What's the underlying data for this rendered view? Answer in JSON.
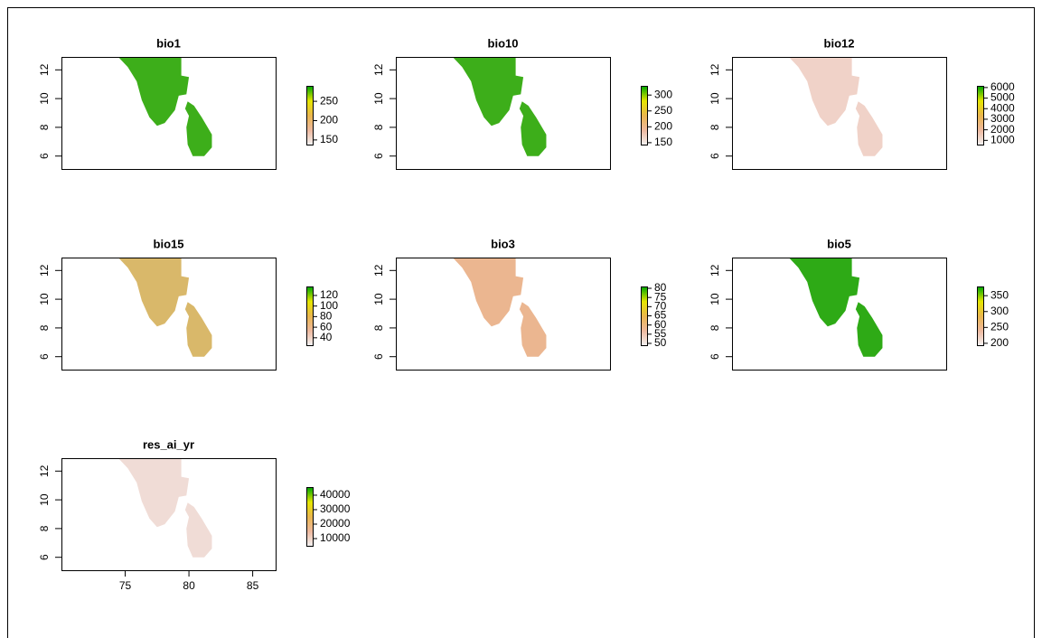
{
  "chart_data": [
    {
      "type": "raster",
      "title": "bio1",
      "xlim": [
        70,
        86.8
      ],
      "ylim": [
        5.1,
        12.9
      ],
      "yticks": [
        6,
        8,
        10,
        12
      ],
      "zlim": [
        138,
        290
      ],
      "zticks": [
        150,
        200,
        250
      ],
      "colors": [
        "#F2F2F2",
        "#EEB99F",
        "#EAB64E",
        "#E6E600",
        "#00A600"
      ],
      "fill": "#3DAE1A"
    },
    {
      "type": "raster",
      "title": "bio10",
      "xlim": [
        70,
        86.8
      ],
      "ylim": [
        5.1,
        12.9
      ],
      "yticks": [
        6,
        8,
        10,
        12
      ],
      "zlim": [
        144,
        329
      ],
      "zticks": [
        150,
        200,
        250,
        300
      ],
      "colors": [
        "#F2F2F2",
        "#EEB99F",
        "#EAB64E",
        "#E6E600",
        "#00A600"
      ],
      "fill": "#3DAE1A"
    },
    {
      "type": "raster",
      "title": "bio12",
      "xlim": [
        70,
        86.8
      ],
      "ylim": [
        5.1,
        12.9
      ],
      "yticks": [
        6,
        8,
        10,
        12
      ],
      "zlim": [
        600,
        6160
      ],
      "zticks": [
        1000,
        2000,
        3000,
        4000,
        5000,
        6000
      ],
      "colors": [
        "#F2F2F2",
        "#EEB99F",
        "#EAB64E",
        "#E6E600",
        "#00A600"
      ],
      "fill": "#F0D2C8"
    },
    {
      "type": "raster",
      "title": "bio15",
      "xlim": [
        70,
        86.8
      ],
      "ylim": [
        5.1,
        12.9
      ],
      "yticks": [
        6,
        8,
        10,
        12
      ],
      "zlim": [
        26,
        137
      ],
      "zticks": [
        40,
        60,
        80,
        100,
        120
      ],
      "colors": [
        "#F2F2F2",
        "#EEB99F",
        "#EAB64E",
        "#E6E600",
        "#00A600"
      ],
      "fill": "#D9B86A"
    },
    {
      "type": "raster",
      "title": "bio3",
      "xlim": [
        70,
        86.8
      ],
      "ylim": [
        5.1,
        12.9
      ],
      "yticks": [
        6,
        8,
        10,
        12
      ],
      "zlim": [
        49,
        81
      ],
      "zticks": [
        50,
        55,
        60,
        65,
        70,
        75,
        80
      ],
      "colors": [
        "#F2F2F2",
        "#EEB99F",
        "#EAB64E",
        "#E6E600",
        "#00A600"
      ],
      "fill": "#EBB690"
    },
    {
      "type": "raster",
      "title": "bio5",
      "xlim": [
        70,
        86.8
      ],
      "ylim": [
        5.1,
        12.9
      ],
      "yticks": [
        6,
        8,
        10,
        12
      ],
      "zlim": [
        194,
        379
      ],
      "zticks": [
        200,
        250,
        300,
        350
      ],
      "colors": [
        "#F2F2F2",
        "#EEB99F",
        "#EAB64E",
        "#E6E600",
        "#00A600"
      ],
      "fill": "#2EAA16"
    },
    {
      "type": "raster",
      "title": "res_ai_yr",
      "xlim": [
        70,
        86.8
      ],
      "ylim": [
        5.1,
        12.9
      ],
      "yticks": [
        6,
        8,
        10,
        12
      ],
      "xticks": [
        75,
        80,
        85
      ],
      "zlim": [
        5000,
        45600
      ],
      "zticks": [
        10000,
        20000,
        30000,
        40000
      ],
      "colors": [
        "#F2F2F2",
        "#EEB99F",
        "#EAB64E",
        "#E6E600",
        "#00A600"
      ],
      "fill": "#F0DCD6"
    }
  ]
}
